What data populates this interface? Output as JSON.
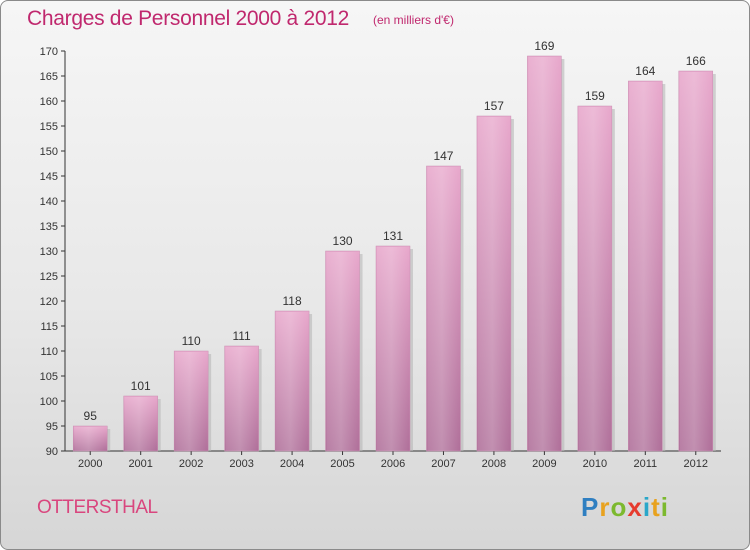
{
  "header": {
    "title": "Charges de Personnel 2000 à 2012",
    "subtitle": "(en milliers d'€)"
  },
  "footer": {
    "commune": "OTTERSTHAL",
    "brand": {
      "p": "P",
      "r": "r",
      "o": "o",
      "x": "x",
      "i1": "i",
      "t": "t",
      "i2": "i"
    }
  },
  "colors": {
    "title": "#c0286e",
    "bar_top": "#e8a8cc",
    "bar_bottom": "#b0709a",
    "bar_shadow": "#b8b8b8"
  },
  "chart_data": {
    "type": "bar",
    "title": "Charges de Personnel 2000 à 2012",
    "subtitle": "(en milliers d'€)",
    "xlabel": "",
    "ylabel": "",
    "categories": [
      "2000",
      "2001",
      "2002",
      "2003",
      "2004",
      "2005",
      "2006",
      "2007",
      "2008",
      "2009",
      "2010",
      "2011",
      "2012"
    ],
    "values": [
      95,
      101,
      110,
      111,
      118,
      130,
      131,
      147,
      157,
      169,
      159,
      164,
      166
    ],
    "ylim": [
      90,
      170
    ],
    "yticks": [
      90,
      95,
      100,
      105,
      110,
      115,
      120,
      125,
      130,
      135,
      140,
      145,
      150,
      155,
      160,
      165,
      170
    ],
    "grid": false,
    "legend": "none"
  }
}
